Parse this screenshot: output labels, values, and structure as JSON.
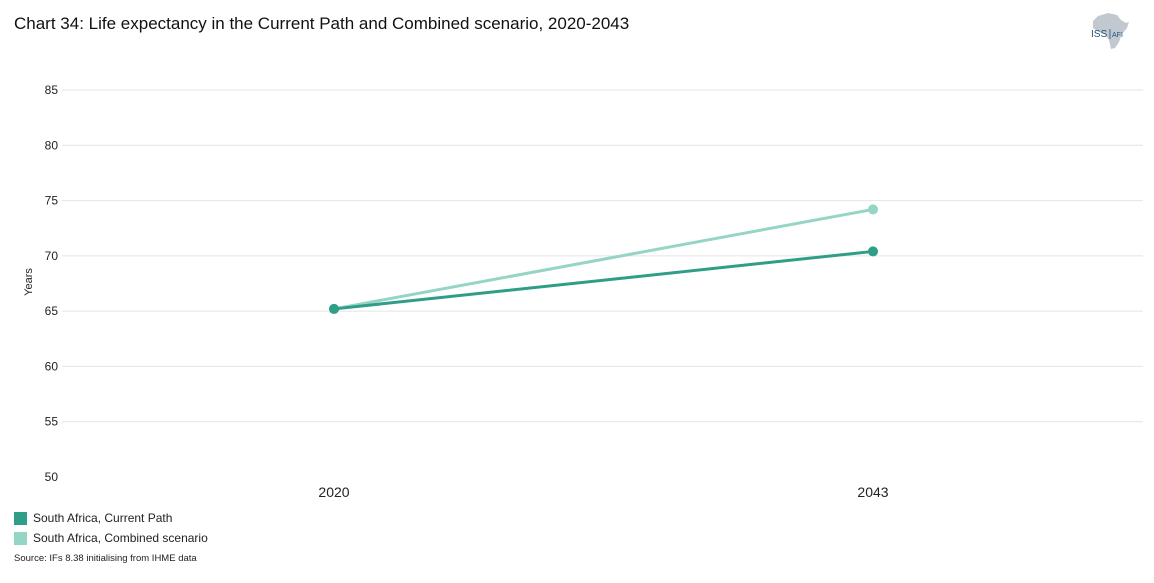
{
  "title": "Chart 34: Life expectancy in the Current Path and Combined scenario, 2020-2043",
  "logo": {
    "text_main": "ISS",
    "text_sub": "AFI",
    "icon": "africa-map-icon"
  },
  "source": "Source: IFs 8.38 initialising from IHME data",
  "colors": {
    "current_path": "#2e9e87",
    "combined": "#95d5c5"
  },
  "chart_data": {
    "type": "line",
    "title": "Chart 34: Life expectancy in the Current Path and Combined scenario, 2020-2043",
    "xlabel": "",
    "ylabel": "Years",
    "categories": [
      "2020",
      "2043"
    ],
    "ylim": [
      50,
      85
    ],
    "yticks": [
      50,
      55,
      60,
      65,
      70,
      75,
      80,
      85
    ],
    "grid": true,
    "legend_position": "bottom-left",
    "series": [
      {
        "name": "South Africa, Current Path",
        "values": [
          65.2,
          70.4
        ],
        "color": "#2e9e87"
      },
      {
        "name": "South Africa, Combined scenario",
        "values": [
          65.2,
          74.2
        ],
        "color": "#95d5c5"
      }
    ]
  }
}
